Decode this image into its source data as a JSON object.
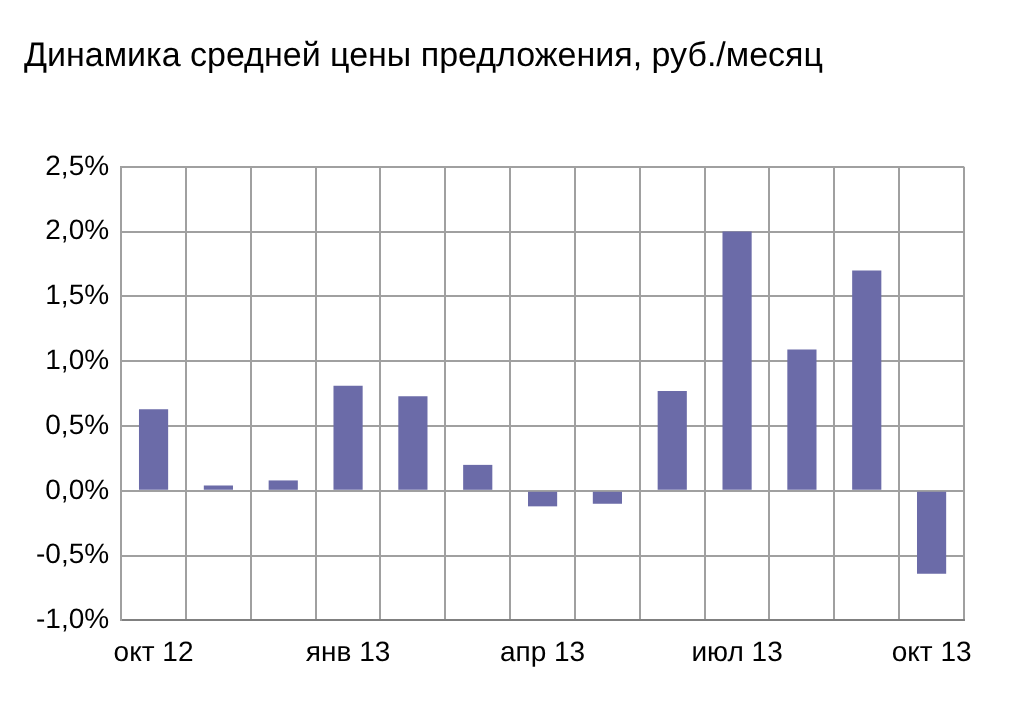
{
  "chart_data": {
    "type": "bar",
    "title": "Динамика средней цены предложения, руб./месяц",
    "categories": [
      "окт 12",
      null,
      null,
      "янв 13",
      null,
      null,
      "апр 13",
      null,
      null,
      "июл 13",
      null,
      null,
      "окт 13"
    ],
    "values": [
      0.63,
      0.04,
      0.08,
      0.81,
      0.73,
      0.2,
      -0.12,
      -0.1,
      0.77,
      2.0,
      1.09,
      1.7,
      -0.64
    ],
    "color": "#6b6ba8",
    "ylim": [
      -1.0,
      2.5
    ],
    "yticks": [
      {
        "value": -1.0,
        "label": "-1,0%"
      },
      {
        "value": -0.5,
        "label": "-0,5%"
      },
      {
        "value": 0,
        "label": "0,0%"
      },
      {
        "value": 0.5,
        "label": "0,5%"
      },
      {
        "value": 1.0,
        "label": "1,0%"
      },
      {
        "value": 1.5,
        "label": "1,5%"
      },
      {
        "value": 2.0,
        "label": "2,0%"
      },
      {
        "value": 2.5,
        "label": "2,5%"
      }
    ],
    "grid": true,
    "legend": false
  }
}
